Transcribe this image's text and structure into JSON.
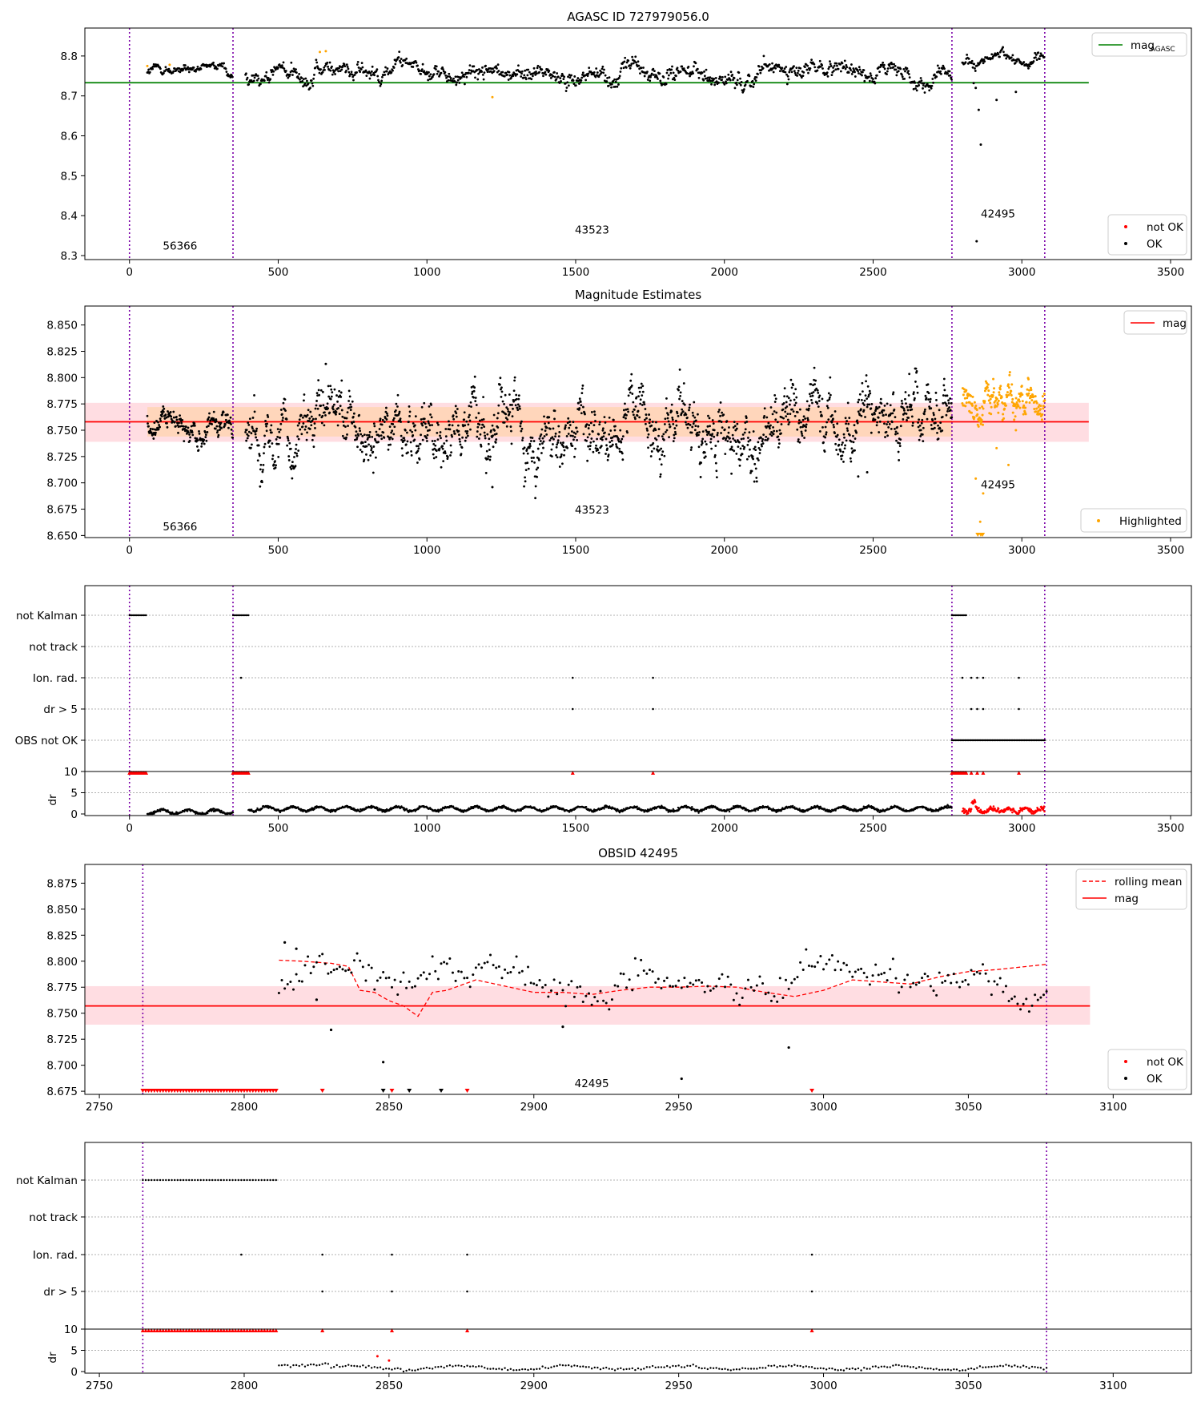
{
  "chart_data": [
    {
      "type": "scatter",
      "title": "AGASC ID 727979056.0",
      "xlim": [
        -150,
        3570
      ],
      "ylim": [
        8.29,
        8.87
      ],
      "xticks": [
        0,
        500,
        1000,
        1500,
        2000,
        2500,
        3000,
        3500
      ],
      "yticks": [
        8.3,
        8.4,
        8.5,
        8.6,
        8.7,
        8.8
      ],
      "ytick_labels": [
        "8.3",
        "8.4",
        "8.5",
        "8.6",
        "8.7",
        "8.8"
      ],
      "obs_boundaries": [
        0,
        348,
        2765,
        3077
      ],
      "obsid_labels": [
        {
          "text": "56366",
          "x": 170,
          "y": 8.315
        },
        {
          "text": "43523",
          "x": 1555,
          "y": 8.355
        },
        {
          "text": "42495",
          "x": 2920,
          "y": 8.395
        }
      ],
      "hline": {
        "name": "mag_AGASC",
        "y": 8.733,
        "x0": -150,
        "x1": 3225,
        "color": "#008000"
      },
      "legend_upper": [
        {
          "label": "mag",
          "sub": "AGASC",
          "color": "#008000"
        }
      ],
      "legend_lower": [
        {
          "label": "not OK",
          "color": "#ff0000"
        },
        {
          "label": "OK",
          "color": "#000000"
        }
      ],
      "series": [
        {
          "name": "main",
          "segments": [
            [
              60,
              348,
              8.762,
              0.008
            ],
            [
              390,
              2765,
              8.758,
              0.016
            ],
            [
              2800,
              3077,
              8.787,
              0.01
            ]
          ]
        },
        {
          "name": "outliers",
          "x": [
            2848,
            2855,
            2862,
            2915,
            2980,
            2838,
            2845
          ],
          "y": [
            8.336,
            8.665,
            8.578,
            8.69,
            8.71,
            8.732,
            8.72
          ]
        },
        {
          "name": "highlighted",
          "x": [
            60,
            135,
            1220,
            640,
            660
          ],
          "y": [
            8.775,
            8.778,
            8.697,
            8.81,
            8.812
          ]
        }
      ]
    },
    {
      "type": "scatter",
      "title": "Magnitude Estimates",
      "xlim": [
        -150,
        3570
      ],
      "ylim": [
        8.648,
        8.868
      ],
      "xticks": [
        0,
        500,
        1000,
        1500,
        2000,
        2500,
        3000,
        3500
      ],
      "yticks": [
        8.65,
        8.675,
        8.7,
        8.725,
        8.75,
        8.775,
        8.8,
        8.825,
        8.85
      ],
      "ytick_labels": [
        "8.650",
        "8.675",
        "8.700",
        "8.725",
        "8.750",
        "8.775",
        "8.800",
        "8.825",
        "8.850"
      ],
      "obs_boundaries": [
        0,
        348,
        2765,
        3077
      ],
      "obsid_labels": [
        {
          "text": "56366",
          "x": 170,
          "y": 8.655
        },
        {
          "text": "43523",
          "x": 1555,
          "y": 8.671
        },
        {
          "text": "42495",
          "x": 2920,
          "y": 8.695
        }
      ],
      "mag_line": {
        "y": 8.758,
        "x0": -150,
        "x1": 3225,
        "color": "#ff0000"
      },
      "band_outer": {
        "y0": 8.739,
        "y1": 8.776,
        "x0": -150,
        "x1": 3225
      },
      "band_inner": {
        "y0": 8.744,
        "y1": 8.772,
        "x0": 60,
        "x1": 2765
      },
      "legend_upper": [
        {
          "label": "mag",
          "color": "#ff0000"
        }
      ],
      "legend_lower": [
        {
          "label": "Highlighted",
          "color": "#ffa500"
        }
      ],
      "series": [
        {
          "name": "ok",
          "segments": [
            [
              60,
              348,
              8.757,
              0.008
            ],
            [
              390,
              2765,
              8.757,
              0.02
            ]
          ]
        },
        {
          "name": "highlighted",
          "segments": [
            [
              2800,
              3077,
              8.779,
              0.012
            ]
          ],
          "extra_x": [
            2845,
            2860,
            2870,
            2915,
            2955,
            2980
          ],
          "extra_y": [
            8.704,
            8.663,
            8.69,
            8.733,
            8.717,
            8.75
          ]
        },
        {
          "name": "ok_outliers",
          "x": [
            1220,
            2450,
            2480,
            660
          ],
          "y": [
            8.696,
            8.706,
            8.71,
            8.813
          ]
        }
      ]
    },
    {
      "type": "scatter",
      "title": "",
      "xlim": [
        -150,
        3570
      ],
      "ylim": [
        0,
        10
      ],
      "xticks": [
        0,
        500,
        1000,
        1500,
        2000,
        2500,
        3000,
        3500
      ],
      "flag_rows": [
        "not Kalman",
        "not track",
        "Ion. rad.",
        "dr > 5",
        "OBS not OK"
      ],
      "dr_yticks": [
        0,
        5,
        10
      ],
      "dr_ylabel": "dr",
      "obs_boundaries": [
        0,
        348,
        2765,
        3077
      ],
      "flags": {
        "not Kalman": [
          [
            0,
            58
          ],
          [
            348,
            400
          ],
          [
            2765,
            2815
          ]
        ],
        "Ion. rad.": [
          375,
          1490,
          1760,
          2800,
          2830,
          2850,
          2870,
          2990
        ],
        "dr > 5": [
          1490,
          1760,
          2830,
          2850,
          2870,
          2990
        ],
        "OBS not OK": [
          [
            2765,
            3077
          ]
        ]
      },
      "dr_series": {
        "ok_segments": [
          [
            60,
            348,
            0.5
          ],
          [
            400,
            2765,
            1.2
          ]
        ],
        "red_segment": [
          2800,
          3077,
          0.9
        ],
        "overflow_x": [
          1490,
          1760,
          2830,
          2850,
          2870,
          2990
        ],
        "overflow_ranges": [
          [
            0,
            58
          ],
          [
            348,
            400
          ],
          [
            2765,
            2815
          ]
        ]
      }
    },
    {
      "type": "scatter",
      "title": "OBSID 42495",
      "xlim": [
        2745,
        3127
      ],
      "ylim": [
        8.672,
        8.893
      ],
      "xticks": [
        2750,
        2800,
        2850,
        2900,
        2950,
        3000,
        3050,
        3100
      ],
      "yticks": [
        8.675,
        8.7,
        8.725,
        8.75,
        8.775,
        8.8,
        8.825,
        8.85,
        8.875
      ],
      "ytick_labels": [
        "8.675",
        "8.700",
        "8.725",
        "8.750",
        "8.775",
        "8.800",
        "8.825",
        "8.850",
        "8.875"
      ],
      "obs_boundaries": [
        2765,
        3077
      ],
      "obsid_labels": [
        {
          "text": "42495",
          "x": 2920,
          "y": 8.679
        }
      ],
      "mag_line": {
        "y": 8.757,
        "x0": 2745,
        "x1": 3092,
        "color": "#ff0000"
      },
      "band": {
        "y0": 8.739,
        "y1": 8.776,
        "x0": 2745,
        "x1": 3092
      },
      "legend_upper": [
        {
          "label": "rolling mean",
          "color": "#ff0000",
          "style": "dashed"
        },
        {
          "label": "mag",
          "color": "#ff0000",
          "style": "solid"
        }
      ],
      "legend_lower": [
        {
          "label": "not OK",
          "color": "#ff0000"
        },
        {
          "label": "OK",
          "color": "#000000"
        }
      ],
      "rolling_mean": {
        "x": [
          2812,
          2820,
          2830,
          2836,
          2840,
          2845,
          2850,
          2855,
          2860,
          2865,
          2870,
          2880,
          2890,
          2900,
          2910,
          2920,
          2930,
          2940,
          2950,
          2960,
          2970,
          2980,
          2990,
          3000,
          3010,
          3020,
          3030,
          3040,
          3050,
          3060,
          3077
        ],
        "y": [
          8.801,
          8.8,
          8.798,
          8.795,
          8.772,
          8.77,
          8.762,
          8.757,
          8.747,
          8.77,
          8.772,
          8.782,
          8.776,
          8.77,
          8.77,
          8.768,
          8.772,
          8.775,
          8.775,
          8.776,
          8.775,
          8.77,
          8.766,
          8.772,
          8.782,
          8.78,
          8.778,
          8.785,
          8.79,
          8.792,
          8.797
        ]
      },
      "series": [
        {
          "name": "ok",
          "segments": [
            [
              2812,
              3077,
              8.78,
              0.014
            ]
          ],
          "extra_x": [
            2825,
            2830,
            2848,
            2910,
            2951,
            2988,
            2814,
            2818
          ],
          "extra_y": [
            8.763,
            8.734,
            8.703,
            8.737,
            8.687,
            8.717,
            8.818,
            8.812
          ]
        },
        {
          "name": "red_markers",
          "x": [
            2827,
            2851,
            2877,
            2996
          ],
          "y": [
            8.673,
            8.673,
            8.673,
            8.673
          ]
        },
        {
          "name": "black_markers",
          "x": [
            2848,
            2857,
            2868
          ],
          "y": [
            8.673,
            8.673,
            8.673
          ]
        },
        {
          "name": "red_row",
          "range": [
            2765,
            2811
          ]
        }
      ]
    },
    {
      "type": "scatter",
      "title": "",
      "xlim": [
        2745,
        3127
      ],
      "ylim": [
        0,
        10
      ],
      "xticks": [
        2750,
        2800,
        2850,
        2900,
        2950,
        3000,
        3050,
        3100
      ],
      "flag_rows": [
        "not Kalman",
        "not track",
        "Ion. rad.",
        "dr > 5"
      ],
      "dr_yticks": [
        0,
        5,
        10
      ],
      "dr_ylabel": "dr",
      "obs_boundaries": [
        2765,
        3077
      ],
      "flags": {
        "not Kalman": [
          [
            2765,
            2811
          ]
        ],
        "Ion. rad.": [
          2799,
          2827,
          2851,
          2877,
          2996
        ],
        "dr > 5": [
          2827,
          2851,
          2877,
          2996
        ]
      },
      "dr_series": {
        "ok_segment": [
          2812,
          3077,
          0.9
        ],
        "red_x": [
          2846,
          2850
        ],
        "red_y": [
          3.6,
          2.6
        ],
        "overflow_range": [
          2765,
          2811
        ],
        "overflow_x": [
          2827,
          2851,
          2877,
          2996
        ]
      }
    }
  ]
}
